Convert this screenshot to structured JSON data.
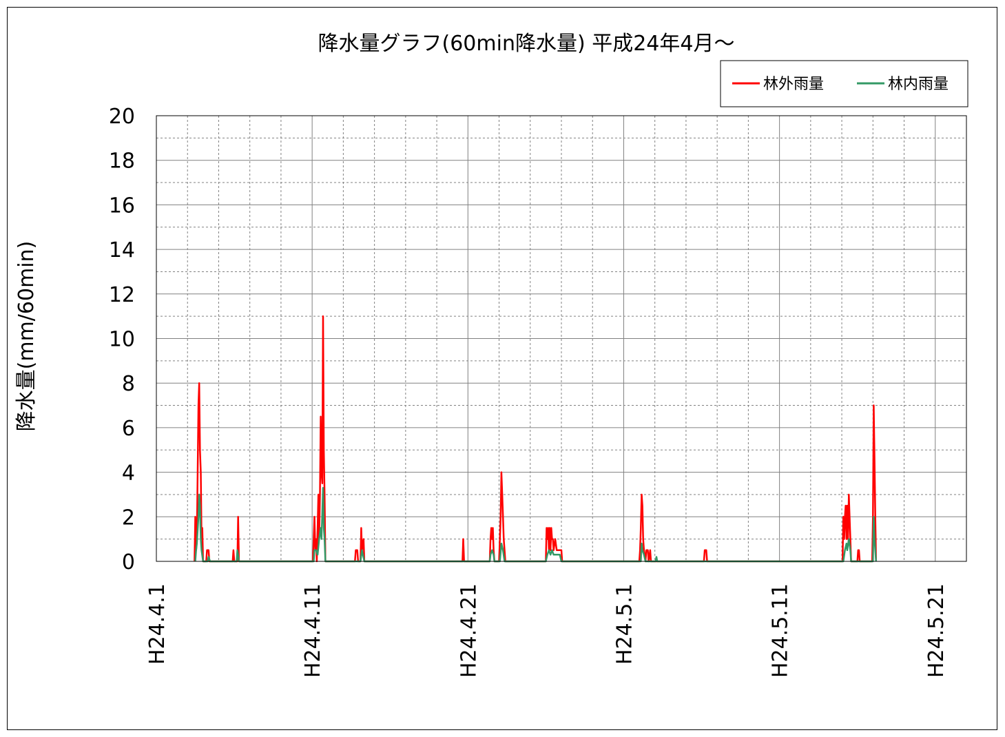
{
  "chart_data": {
    "type": "line",
    "title": "降水量グラフ(60min降水量) 平成24年4月～",
    "xlabel": "",
    "ylabel": "降水量(mm/60min)",
    "ylim": [
      0,
      20
    ],
    "yticks": [
      0,
      2,
      4,
      6,
      8,
      10,
      12,
      14,
      16,
      18,
      20
    ],
    "xlim": [
      0,
      52
    ],
    "xticks": [
      {
        "x": 0,
        "label": "H24.4.1"
      },
      {
        "x": 10,
        "label": "H24.4.11"
      },
      {
        "x": 20,
        "label": "H24.4.21"
      },
      {
        "x": 30,
        "label": "H24.5.1"
      },
      {
        "x": 40,
        "label": "H24.5.11"
      },
      {
        "x": 50,
        "label": "H24.5.21"
      }
    ],
    "grid": true,
    "legend_position": "top-right",
    "series": [
      {
        "name": "林外雨量",
        "color": "#ff0000",
        "points": [
          [
            2.45,
            0
          ],
          [
            2.5,
            2
          ],
          [
            2.55,
            0.5
          ],
          [
            2.6,
            1
          ],
          [
            2.7,
            7
          ],
          [
            2.75,
            8
          ],
          [
            2.8,
            5
          ],
          [
            2.85,
            4
          ],
          [
            2.9,
            1
          ],
          [
            2.95,
            1.5
          ],
          [
            3.0,
            0
          ],
          [
            3.05,
            0
          ],
          [
            3.2,
            0
          ],
          [
            3.25,
            0.5
          ],
          [
            3.35,
            0.5
          ],
          [
            3.4,
            0
          ],
          [
            4.9,
            0
          ],
          [
            4.95,
            0.5
          ],
          [
            5.0,
            0
          ],
          [
            5.2,
            0
          ],
          [
            5.25,
            2
          ],
          [
            5.3,
            0
          ],
          [
            10.05,
            0
          ],
          [
            10.1,
            1
          ],
          [
            10.15,
            2
          ],
          [
            10.2,
            0.5
          ],
          [
            10.25,
            1
          ],
          [
            10.3,
            0
          ],
          [
            10.35,
            1.5
          ],
          [
            10.4,
            3
          ],
          [
            10.45,
            1
          ],
          [
            10.5,
            3
          ],
          [
            10.55,
            6.5
          ],
          [
            10.6,
            4
          ],
          [
            10.65,
            3.5
          ],
          [
            10.7,
            11
          ],
          [
            10.75,
            5
          ],
          [
            10.8,
            3
          ],
          [
            10.85,
            0
          ],
          [
            12.75,
            0
          ],
          [
            12.8,
            0.5
          ],
          [
            12.9,
            0.5
          ],
          [
            12.95,
            0
          ],
          [
            13.1,
            0
          ],
          [
            13.15,
            1.5
          ],
          [
            13.2,
            0.5
          ],
          [
            13.3,
            1
          ],
          [
            13.35,
            0
          ],
          [
            19.65,
            0
          ],
          [
            19.7,
            1
          ],
          [
            19.75,
            0
          ],
          [
            21.4,
            0
          ],
          [
            21.45,
            1
          ],
          [
            21.5,
            1.5
          ],
          [
            21.55,
            1
          ],
          [
            21.6,
            1.5
          ],
          [
            21.65,
            0.5
          ],
          [
            21.7,
            0
          ],
          [
            22.0,
            0
          ],
          [
            22.05,
            1
          ],
          [
            22.1,
            2
          ],
          [
            22.15,
            4
          ],
          [
            22.2,
            3
          ],
          [
            22.25,
            2
          ],
          [
            22.3,
            1
          ],
          [
            22.35,
            0.5
          ],
          [
            22.4,
            0
          ],
          [
            25.0,
            0
          ],
          [
            25.05,
            1.5
          ],
          [
            25.1,
            1
          ],
          [
            25.15,
            1.5
          ],
          [
            25.2,
            0.5
          ],
          [
            25.25,
            1.5
          ],
          [
            25.3,
            0.5
          ],
          [
            25.35,
            1.5
          ],
          [
            25.4,
            1
          ],
          [
            25.45,
            1
          ],
          [
            25.5,
            0.5
          ],
          [
            25.6,
            1
          ],
          [
            25.7,
            0.5
          ],
          [
            25.8,
            0.5
          ],
          [
            25.9,
            0.5
          ],
          [
            26.0,
            0.5
          ],
          [
            26.05,
            0
          ],
          [
            31.0,
            0
          ],
          [
            31.05,
            0.5
          ],
          [
            31.1,
            1.5
          ],
          [
            31.15,
            3
          ],
          [
            31.2,
            2.5
          ],
          [
            31.25,
            1
          ],
          [
            31.3,
            0.5
          ],
          [
            31.4,
            0
          ],
          [
            31.45,
            0.5
          ],
          [
            31.55,
            0.5
          ],
          [
            31.6,
            0
          ],
          [
            31.7,
            0.5
          ],
          [
            31.75,
            0
          ],
          [
            35.15,
            0
          ],
          [
            35.2,
            0.5
          ],
          [
            35.3,
            0.5
          ],
          [
            35.35,
            0
          ],
          [
            44.05,
            0
          ],
          [
            44.1,
            2
          ],
          [
            44.15,
            1
          ],
          [
            44.2,
            2
          ],
          [
            44.25,
            2.5
          ],
          [
            44.3,
            1
          ],
          [
            44.35,
            2.5
          ],
          [
            44.4,
            1
          ],
          [
            44.45,
            3
          ],
          [
            44.5,
            2
          ],
          [
            44.55,
            1
          ],
          [
            44.6,
            0
          ],
          [
            45.0,
            0
          ],
          [
            45.05,
            0.5
          ],
          [
            45.1,
            0.5
          ],
          [
            45.15,
            0
          ],
          [
            45.95,
            0
          ],
          [
            46.0,
            2
          ],
          [
            46.05,
            7
          ],
          [
            46.1,
            4.5
          ],
          [
            46.15,
            2
          ],
          [
            46.2,
            0
          ]
        ]
      },
      {
        "name": "林内雨量",
        "color": "#339966",
        "points": [
          [
            2.5,
            0
          ],
          [
            2.55,
            0.5
          ],
          [
            2.6,
            0.8
          ],
          [
            2.7,
            2
          ],
          [
            2.75,
            3
          ],
          [
            2.8,
            2.5
          ],
          [
            2.85,
            1
          ],
          [
            2.9,
            0.5
          ],
          [
            3.0,
            0
          ],
          [
            3.3,
            0
          ],
          [
            3.35,
            0.2
          ],
          [
            3.45,
            0
          ],
          [
            5.15,
            0
          ],
          [
            5.2,
            0.5
          ],
          [
            5.25,
            0.3
          ],
          [
            5.3,
            0
          ],
          [
            10.1,
            0
          ],
          [
            10.15,
            0.5
          ],
          [
            10.25,
            0.5
          ],
          [
            10.35,
            0.3
          ],
          [
            10.45,
            1
          ],
          [
            10.55,
            1.5
          ],
          [
            10.6,
            1
          ],
          [
            10.7,
            3.3
          ],
          [
            10.75,
            1.5
          ],
          [
            10.8,
            1
          ],
          [
            10.85,
            0
          ],
          [
            13.1,
            0
          ],
          [
            13.2,
            0.5
          ],
          [
            13.35,
            0
          ],
          [
            21.4,
            0
          ],
          [
            21.45,
            0.3
          ],
          [
            21.55,
            0.5
          ],
          [
            21.65,
            0.3
          ],
          [
            21.7,
            0
          ],
          [
            22.05,
            0
          ],
          [
            22.15,
            0.8
          ],
          [
            22.25,
            0.5
          ],
          [
            22.35,
            0
          ],
          [
            25.0,
            0
          ],
          [
            25.1,
            0.3
          ],
          [
            25.2,
            0.5
          ],
          [
            25.3,
            0.3
          ],
          [
            25.4,
            0.5
          ],
          [
            25.5,
            0.3
          ],
          [
            25.7,
            0.3
          ],
          [
            25.9,
            0.3
          ],
          [
            26.0,
            0
          ],
          [
            31.1,
            0
          ],
          [
            31.15,
            0.8
          ],
          [
            31.2,
            0.5
          ],
          [
            31.3,
            0.3
          ],
          [
            31.4,
            0
          ],
          [
            32.05,
            0
          ],
          [
            32.1,
            0.2
          ],
          [
            32.15,
            0
          ],
          [
            44.1,
            0
          ],
          [
            44.2,
            0.5
          ],
          [
            44.3,
            0.8
          ],
          [
            44.35,
            0.5
          ],
          [
            44.45,
            1
          ],
          [
            44.55,
            0.5
          ],
          [
            44.6,
            0
          ],
          [
            46.0,
            0
          ],
          [
            46.05,
            2
          ],
          [
            46.1,
            1
          ],
          [
            46.2,
            0
          ]
        ]
      }
    ]
  }
}
